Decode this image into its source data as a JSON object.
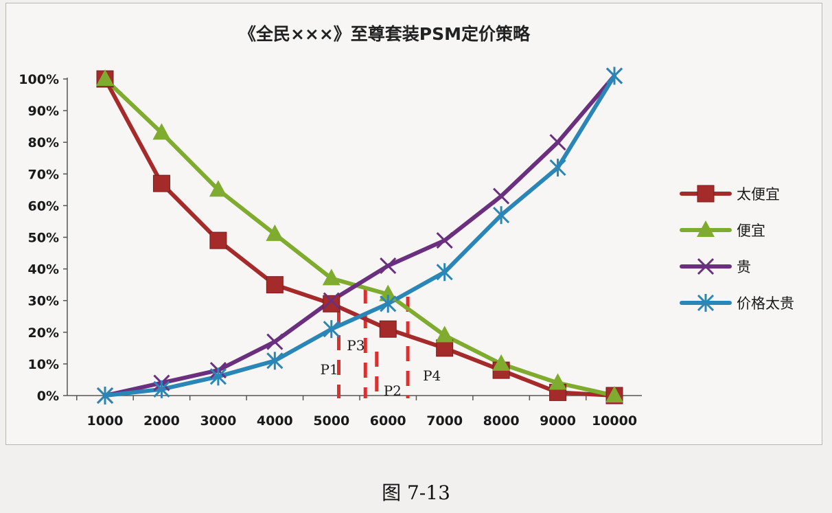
{
  "figure_caption": "图 7-13",
  "chart_data": {
    "type": "line",
    "title": "《全民×××》至尊套装PSM定价策略",
    "xlabel": "",
    "ylabel": "",
    "categories": [
      1000,
      2000,
      3000,
      4000,
      5000,
      6000,
      7000,
      8000,
      9000,
      10000
    ],
    "ylim": [
      0,
      100
    ],
    "y_ticks": [
      "0%",
      "10%",
      "20%",
      "30%",
      "40%",
      "50%",
      "60%",
      "70%",
      "80%",
      "90%",
      "100%"
    ],
    "x_ticks": [
      "1000",
      "2000",
      "3000",
      "4000",
      "5000",
      "6000",
      "7000",
      "8000",
      "9000",
      "10000"
    ],
    "grid": false,
    "legend_position": "right",
    "series": [
      {
        "name": "太便宜",
        "color": "#a52a2a",
        "marker": "square",
        "values": [
          100,
          67,
          49,
          35,
          29,
          21,
          15,
          8,
          1,
          0
        ]
      },
      {
        "name": "便宜",
        "color": "#7fab2e",
        "marker": "triangle",
        "values": [
          100,
          83,
          65,
          51,
          37,
          32,
          19,
          10,
          4,
          0
        ]
      },
      {
        "name": "贵",
        "color": "#6a2f7e",
        "marker": "x",
        "values": [
          0,
          4,
          8,
          17,
          30,
          41,
          49,
          63,
          80,
          101
        ]
      },
      {
        "name": "价格太贵",
        "color": "#2a86b6",
        "marker": "star",
        "values": [
          0,
          2,
          6,
          11,
          21,
          29,
          39,
          57,
          72,
          101
        ]
      }
    ],
    "annotations": [
      {
        "label": "P1",
        "x": 5130
      },
      {
        "label": "P3",
        "x": 5600
      },
      {
        "label": "P2",
        "x": 5800
      },
      {
        "label": "P4",
        "x": 6350
      }
    ]
  }
}
